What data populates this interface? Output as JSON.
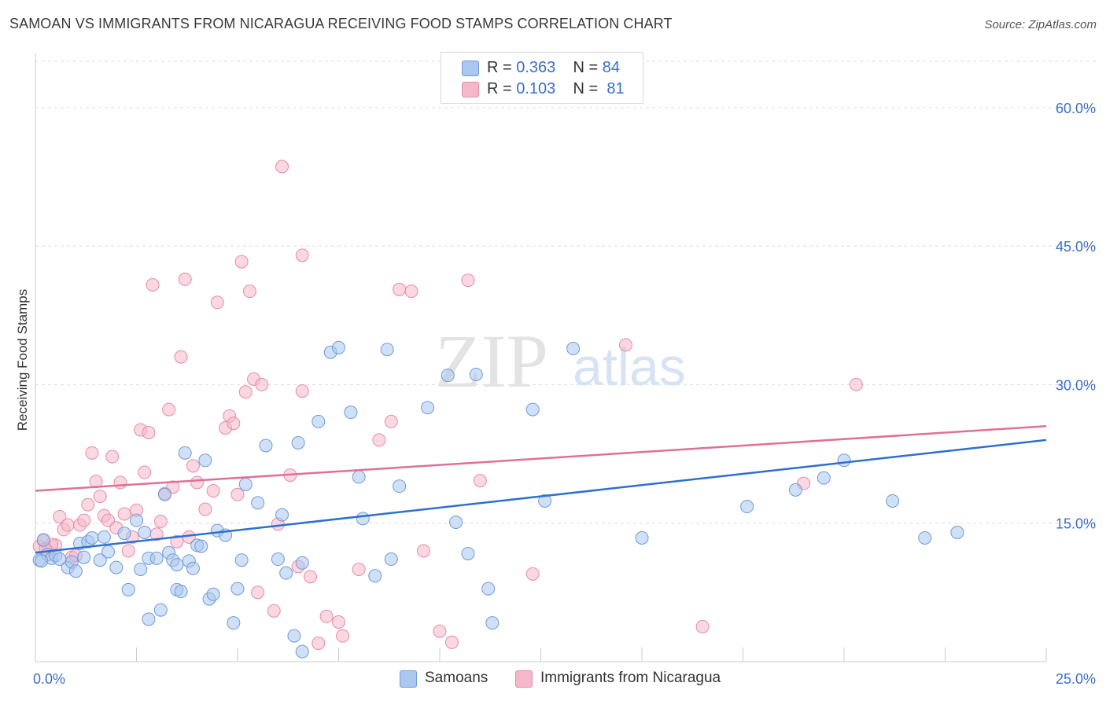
{
  "title": "SAMOAN VS IMMIGRANTS FROM NICARAGUA RECEIVING FOOD STAMPS CORRELATION CHART",
  "source": "Source: ZipAtlas.com",
  "watermark": {
    "zip": "ZIP",
    "atlas": "atlas"
  },
  "legend": {
    "samoans": {
      "r_label": "R =",
      "r_value": "0.363",
      "n_label": "N =",
      "n_value": "84"
    },
    "nicaragua": {
      "r_label": "R =",
      "r_value": "0.103",
      "n_label": "N =",
      "n_value": "81"
    }
  },
  "bottom_legend": {
    "samoans": "Samoans",
    "nicaragua": "Immigrants from Nicaragua"
  },
  "colors": {
    "blue_fill": "#a9c7ef",
    "blue_stroke": "#6f9bd8",
    "blue_line": "#2f6fd0",
    "pink_fill": "#f5b8cb",
    "pink_stroke": "#e88aa8",
    "pink_line": "#e07096",
    "axis_text": "#3b6fc7",
    "grid": "#dddddd"
  },
  "chart_data": {
    "type": "scatter",
    "title": "SAMOAN VS IMMIGRANTS FROM NICARAGUA RECEIVING FOOD STAMPS CORRELATION CHART",
    "ylabel": "Receiving Food Stamps",
    "xlabel": "",
    "xlim": [
      0,
      25
    ],
    "ylim": [
      0,
      65
    ],
    "x_tick_labels": [
      "0.0%",
      "25.0%"
    ],
    "y_ticks": [
      15,
      30,
      45,
      60
    ],
    "y_tick_labels": [
      "15.0%",
      "30.0%",
      "45.0%",
      "60.0%"
    ],
    "grid": true,
    "legend_position": "top-center",
    "series": [
      {
        "name": "Samoans",
        "trend": {
          "x": [
            0,
            25
          ],
          "y": [
            11.8,
            24.0
          ]
        },
        "points": [
          [
            0.1,
            11.0
          ],
          [
            0.3,
            11.6
          ],
          [
            0.4,
            11.2
          ],
          [
            0.5,
            11.5
          ],
          [
            0.6,
            11.1
          ],
          [
            0.8,
            10.2
          ],
          [
            0.9,
            10.8
          ],
          [
            1.0,
            9.8
          ],
          [
            1.1,
            12.8
          ],
          [
            1.2,
            11.3
          ],
          [
            1.3,
            13.0
          ],
          [
            1.4,
            13.4
          ],
          [
            1.6,
            11.0
          ],
          [
            1.7,
            13.5
          ],
          [
            1.8,
            11.9
          ],
          [
            2.0,
            10.2
          ],
          [
            2.2,
            13.9
          ],
          [
            2.3,
            7.8
          ],
          [
            2.5,
            15.3
          ],
          [
            2.6,
            10.0
          ],
          [
            2.7,
            14.0
          ],
          [
            2.8,
            11.2
          ],
          [
            2.8,
            4.6
          ],
          [
            3.0,
            11.2
          ],
          [
            3.1,
            5.6
          ],
          [
            3.2,
            18.1
          ],
          [
            3.3,
            11.8
          ],
          [
            3.4,
            11.0
          ],
          [
            3.5,
            7.8
          ],
          [
            3.5,
            10.5
          ],
          [
            3.6,
            7.6
          ],
          [
            3.7,
            22.6
          ],
          [
            3.8,
            10.9
          ],
          [
            3.9,
            10.1
          ],
          [
            4.0,
            12.6
          ],
          [
            4.1,
            12.5
          ],
          [
            4.2,
            21.8
          ],
          [
            4.3,
            6.8
          ],
          [
            4.4,
            7.3
          ],
          [
            4.5,
            14.2
          ],
          [
            4.7,
            13.7
          ],
          [
            4.9,
            4.2
          ],
          [
            5.0,
            7.9
          ],
          [
            5.1,
            11.0
          ],
          [
            5.2,
            19.2
          ],
          [
            5.5,
            17.2
          ],
          [
            5.7,
            23.4
          ],
          [
            6.0,
            11.1
          ],
          [
            6.1,
            15.9
          ],
          [
            6.2,
            9.6
          ],
          [
            6.5,
            23.7
          ],
          [
            6.6,
            10.7
          ],
          [
            6.4,
            2.8
          ],
          [
            6.6,
            1.1
          ],
          [
            7.0,
            26.0
          ],
          [
            7.3,
            33.5
          ],
          [
            7.5,
            34.0
          ],
          [
            7.8,
            27.0
          ],
          [
            8.0,
            20.0
          ],
          [
            8.1,
            15.5
          ],
          [
            8.4,
            9.3
          ],
          [
            8.7,
            33.8
          ],
          [
            8.8,
            11.1
          ],
          [
            9.0,
            19.0
          ],
          [
            9.7,
            27.5
          ],
          [
            10.2,
            31.0
          ],
          [
            10.4,
            15.1
          ],
          [
            10.7,
            11.7
          ],
          [
            10.9,
            31.1
          ],
          [
            11.2,
            7.9
          ],
          [
            11.3,
            4.2
          ],
          [
            12.3,
            27.3
          ],
          [
            12.6,
            17.4
          ],
          [
            13.3,
            33.9
          ],
          [
            15.0,
            13.4
          ],
          [
            17.6,
            16.8
          ],
          [
            18.8,
            18.6
          ],
          [
            19.5,
            19.9
          ],
          [
            20.0,
            21.8
          ],
          [
            21.2,
            17.4
          ],
          [
            22.0,
            13.4
          ],
          [
            22.8,
            14.0
          ],
          [
            0.15,
            10.9
          ],
          [
            0.2,
            13.2
          ]
        ]
      },
      {
        "name": "Immigrants from Nicaragua",
        "trend": {
          "x": [
            0,
            25
          ],
          "y": [
            18.5,
            25.5
          ]
        },
        "points": [
          [
            0.1,
            12.5
          ],
          [
            0.2,
            13.1
          ],
          [
            0.3,
            12.0
          ],
          [
            0.5,
            12.6
          ],
          [
            0.6,
            15.7
          ],
          [
            0.7,
            14.3
          ],
          [
            0.8,
            14.8
          ],
          [
            0.9,
            11.3
          ],
          [
            1.0,
            11.5
          ],
          [
            1.1,
            14.8
          ],
          [
            1.2,
            15.3
          ],
          [
            1.3,
            17.0
          ],
          [
            1.4,
            22.6
          ],
          [
            1.5,
            19.5
          ],
          [
            1.6,
            17.9
          ],
          [
            1.7,
            15.8
          ],
          [
            1.8,
            15.3
          ],
          [
            1.9,
            22.2
          ],
          [
            2.0,
            14.5
          ],
          [
            2.1,
            19.4
          ],
          [
            2.2,
            16.0
          ],
          [
            2.3,
            12.0
          ],
          [
            2.4,
            13.5
          ],
          [
            2.5,
            16.4
          ],
          [
            2.6,
            25.1
          ],
          [
            2.7,
            20.5
          ],
          [
            2.8,
            24.8
          ],
          [
            2.9,
            40.8
          ],
          [
            3.0,
            13.8
          ],
          [
            3.1,
            15.2
          ],
          [
            3.2,
            18.2
          ],
          [
            3.3,
            27.3
          ],
          [
            3.4,
            18.9
          ],
          [
            3.5,
            13.0
          ],
          [
            3.6,
            33.0
          ],
          [
            3.7,
            41.4
          ],
          [
            3.8,
            13.5
          ],
          [
            3.9,
            21.2
          ],
          [
            4.0,
            19.4
          ],
          [
            4.2,
            16.5
          ],
          [
            4.4,
            18.5
          ],
          [
            4.5,
            38.9
          ],
          [
            4.7,
            25.3
          ],
          [
            4.8,
            26.6
          ],
          [
            4.9,
            25.8
          ],
          [
            5.0,
            18.1
          ],
          [
            5.1,
            43.3
          ],
          [
            5.2,
            29.2
          ],
          [
            5.3,
            40.1
          ],
          [
            5.4,
            30.6
          ],
          [
            5.6,
            30.0
          ],
          [
            5.5,
            7.5
          ],
          [
            5.9,
            5.5
          ],
          [
            6.0,
            14.9
          ],
          [
            6.1,
            53.6
          ],
          [
            6.3,
            20.2
          ],
          [
            6.5,
            10.3
          ],
          [
            6.6,
            29.3
          ],
          [
            6.6,
            44.0
          ],
          [
            6.8,
            9.2
          ],
          [
            7.0,
            2.0
          ],
          [
            7.2,
            4.9
          ],
          [
            7.5,
            4.3
          ],
          [
            7.6,
            2.8
          ],
          [
            8.0,
            10.0
          ],
          [
            8.5,
            24.0
          ],
          [
            8.8,
            26.0
          ],
          [
            9.0,
            40.3
          ],
          [
            9.3,
            40.1
          ],
          [
            9.6,
            12.0
          ],
          [
            10.0,
            3.3
          ],
          [
            10.3,
            2.1
          ],
          [
            10.7,
            41.3
          ],
          [
            11.0,
            19.6
          ],
          [
            12.3,
            9.5
          ],
          [
            14.6,
            34.3
          ],
          [
            16.5,
            3.8
          ],
          [
            19.0,
            19.3
          ],
          [
            20.3,
            30.0
          ],
          [
            0.4,
            12.7
          ],
          [
            0.25,
            12.2
          ]
        ]
      }
    ]
  }
}
